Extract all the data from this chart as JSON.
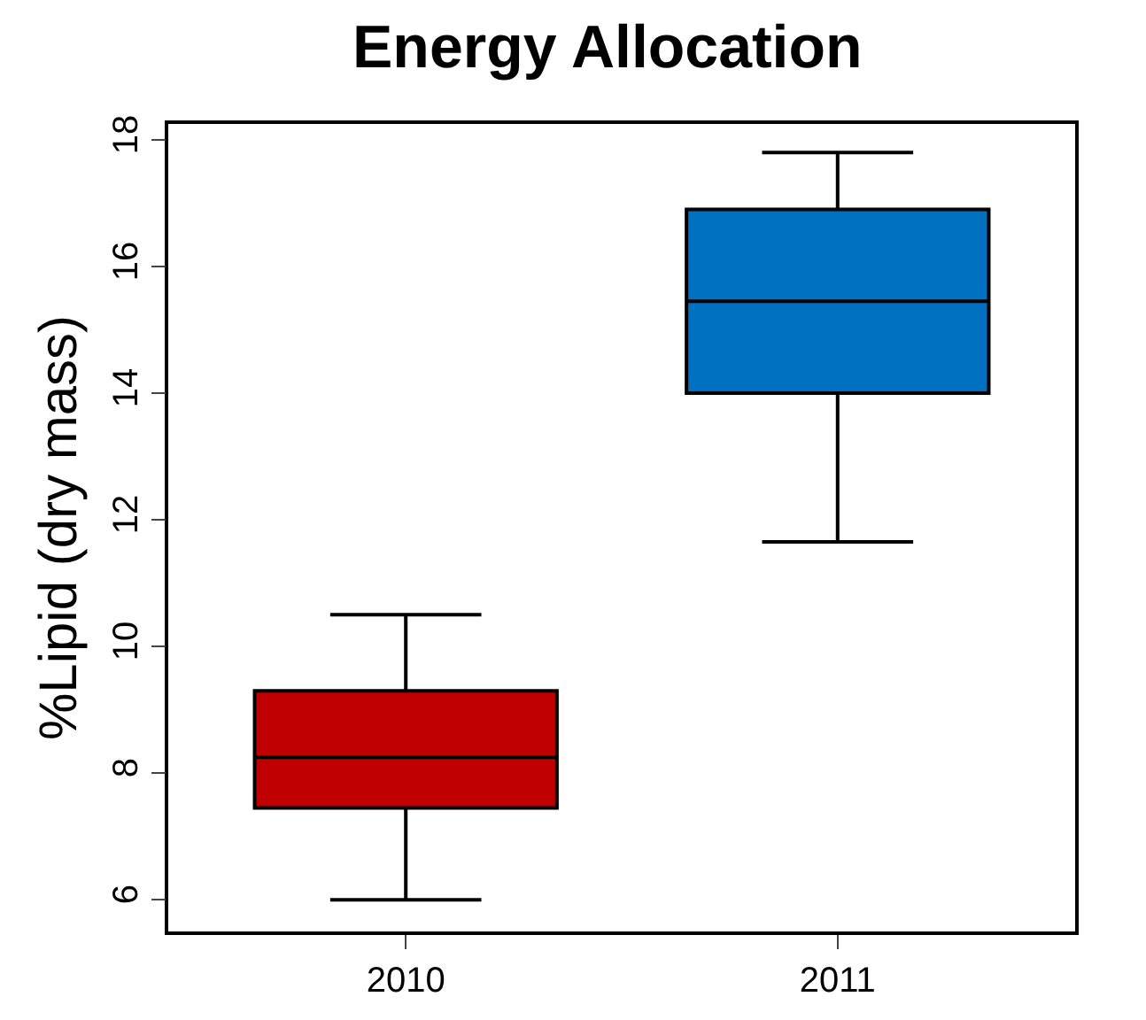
{
  "chart_data": {
    "type": "box",
    "title": "Energy Allocation",
    "ylabel": "%Lipid (dry mass)",
    "categories": [
      "2010",
      "2011"
    ],
    "colors": [
      "#c00000",
      "#0070c0"
    ],
    "boxes": [
      {
        "low": 6.0,
        "q1": 7.45,
        "median": 8.25,
        "q3": 9.3,
        "high": 10.5
      },
      {
        "low": 11.65,
        "q1": 14.0,
        "median": 15.45,
        "q3": 16.9,
        "high": 17.8
      }
    ],
    "ylim": [
      5.5,
      18.25
    ],
    "yticks": [
      6,
      8,
      10,
      12,
      14,
      16,
      18
    ],
    "legend": false
  }
}
